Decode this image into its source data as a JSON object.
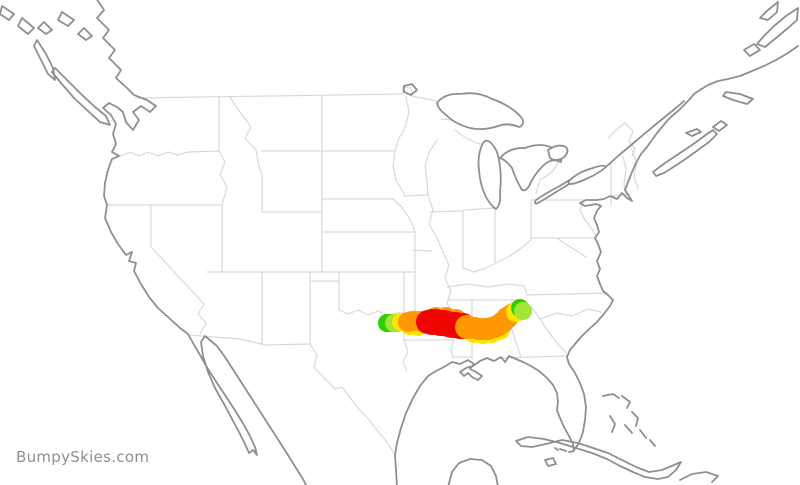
{
  "site": {
    "watermark": "BumpySkies.com"
  },
  "map": {
    "background_color": "#ffffff",
    "coastline_color": "#8f8f8f",
    "state_border_color": "#d9d9d9",
    "region": "continental United States with southern Canada, Mexico, Cuba and Bahamas"
  },
  "flight_path": {
    "description": "turbulence forecast track from north Texas to Georgia",
    "colors": {
      "calm": "#2cd000",
      "light": "#a2e534",
      "light_moderate": "#ffe600",
      "moderate": "#ff9800",
      "severe": "#ee0500"
    },
    "points": [
      [
        410,
        325,
        10,
        "light_moderate"
      ],
      [
        418,
        326,
        10,
        "light_moderate"
      ],
      [
        436,
        318,
        11,
        "moderate"
      ],
      [
        446,
        318,
        11,
        "moderate"
      ],
      [
        456,
        320,
        11,
        "moderate"
      ],
      [
        474,
        333,
        10,
        "light_moderate"
      ],
      [
        483,
        334,
        10,
        "light_moderate"
      ],
      [
        492,
        333,
        10,
        "light_moderate"
      ],
      [
        500,
        330,
        10,
        "light_moderate"
      ],
      [
        387,
        323,
        9,
        "calm"
      ],
      [
        390,
        323,
        9,
        "calm"
      ],
      [
        394,
        323,
        9,
        "light"
      ],
      [
        397,
        323,
        9,
        "light"
      ],
      [
        401,
        322,
        9,
        "light_moderate"
      ],
      [
        404,
        322,
        9,
        "light_moderate"
      ],
      [
        408,
        322,
        10,
        "moderate"
      ],
      [
        412,
        321,
        10,
        "moderate"
      ],
      [
        416,
        321,
        10,
        "moderate"
      ],
      [
        420,
        321,
        10,
        "moderate"
      ],
      [
        424,
        322,
        11,
        "moderate"
      ],
      [
        428,
        322,
        12,
        "severe"
      ],
      [
        432,
        322,
        13,
        "severe"
      ],
      [
        436,
        322,
        13,
        "severe"
      ],
      [
        440,
        323,
        13,
        "severe"
      ],
      [
        444,
        323,
        13,
        "severe"
      ],
      [
        448,
        324,
        13,
        "severe"
      ],
      [
        452,
        325,
        13,
        "severe"
      ],
      [
        456,
        325,
        13,
        "severe"
      ],
      [
        460,
        326,
        13,
        "severe"
      ],
      [
        463,
        326,
        13,
        "severe"
      ],
      [
        467,
        327,
        12,
        "moderate"
      ],
      [
        471,
        328,
        11,
        "moderate"
      ],
      [
        475,
        328,
        11,
        "moderate"
      ],
      [
        479,
        329,
        11,
        "moderate"
      ],
      [
        483,
        329,
        11,
        "moderate"
      ],
      [
        487,
        329,
        11,
        "moderate"
      ],
      [
        491,
        328,
        11,
        "moderate"
      ],
      [
        495,
        327,
        11,
        "moderate"
      ],
      [
        499,
        325,
        11,
        "moderate"
      ],
      [
        503,
        322,
        11,
        "moderate"
      ],
      [
        507,
        318,
        11,
        "moderate"
      ],
      [
        510,
        315,
        10,
        "moderate"
      ],
      [
        513,
        313,
        10,
        "moderate"
      ],
      [
        516,
        312,
        10,
        "light_moderate"
      ],
      [
        520,
        308,
        9,
        "calm"
      ],
      [
        523,
        311,
        9,
        "light"
      ]
    ]
  }
}
